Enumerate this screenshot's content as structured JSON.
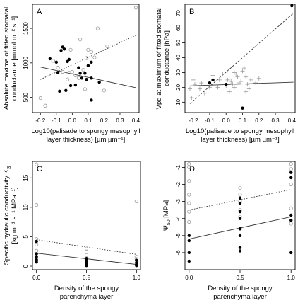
{
  "chart_data": [
    {
      "panel": "A",
      "type": "scatter",
      "xlabel_lines": [
        "Log10(palisade to spongy mesophyll",
        "layer thickness) [µm µm⁻¹]"
      ],
      "ylabel_lines": [
        "Absolute maxima of fitted stomatal",
        "conductance [mmol m⁻² s⁻¹]"
      ],
      "xlim": [
        -0.25,
        0.42
      ],
      "ylim": [
        280,
        1850
      ],
      "xticks": [
        -0.2,
        -0.1,
        0.0,
        0.1,
        0.2,
        0.3,
        0.4
      ],
      "xtick_labels": [
        "-0.2",
        "-0.1",
        "0.0",
        "0.1",
        "0.2",
        "0.3",
        "0.4"
      ],
      "yticks": [
        500,
        1000,
        1500
      ],
      "ytick_labels": [
        "500",
        "1000",
        "1500"
      ],
      "series": [
        {
          "marker": "filled",
          "points": [
            [
              -0.14,
              1060
            ],
            [
              -0.1,
              1010
            ],
            [
              -0.09,
              860
            ],
            [
              -0.08,
              590
            ],
            [
              -0.07,
              1180
            ],
            [
              -0.06,
              1230
            ],
            [
              -0.05,
              1200
            ],
            [
              -0.04,
              600
            ],
            [
              -0.03,
              1020
            ],
            [
              -0.02,
              1050
            ],
            [
              -0.01,
              670
            ],
            [
              0.02,
              680
            ],
            [
              0.04,
              930
            ],
            [
              0.05,
              850
            ],
            [
              0.06,
              780
            ],
            [
              0.08,
              850
            ],
            [
              0.09,
              760
            ],
            [
              0.1,
              960
            ],
            [
              0.12,
              1010
            ],
            [
              0.12,
              780
            ],
            [
              0.17,
              720
            ],
            [
              0.12,
              460
            ]
          ]
        },
        {
          "marker": "open",
          "points": [
            [
              -0.2,
              490
            ],
            [
              -0.17,
              380
            ],
            [
              -0.12,
              1030
            ],
            [
              -0.09,
              930
            ],
            [
              -0.06,
              870
            ],
            [
              -0.02,
              860
            ],
            [
              -0.01,
              1190
            ],
            [
              0.0,
              870
            ],
            [
              0.02,
              820
            ],
            [
              0.04,
              780
            ],
            [
              0.07,
              900
            ],
            [
              0.09,
              1070
            ],
            [
              0.1,
              1190
            ],
            [
              0.12,
              1160
            ],
            [
              0.14,
              1080
            ],
            [
              0.16,
              1500
            ],
            [
              0.22,
              1240
            ],
            [
              0.05,
              1340
            ],
            [
              0.2,
              600
            ],
            [
              -0.03,
              760
            ],
            [
              0.08,
              620
            ],
            [
              0.4,
              1800
            ]
          ]
        }
      ],
      "fits": [
        {
          "style": "dotted",
          "from": [
            -0.2,
            760
          ],
          "to": [
            0.41,
            1410
          ]
        },
        {
          "style": "solid",
          "from": [
            -0.2,
            940
          ],
          "to": [
            0.4,
            640
          ]
        }
      ]
    },
    {
      "panel": "B",
      "type": "scatter",
      "xlabel_lines": [
        "Log10(palisade to spongy mesophyll",
        "layer thickness) [µm µm⁻¹]"
      ],
      "ylabel_lines": [
        "Vpd at maximum of fitted stomatal",
        "conductance [hPa]"
      ],
      "xlim": [
        -0.25,
        0.42
      ],
      "ylim": [
        3,
        76
      ],
      "xticks": [
        -0.2,
        -0.1,
        0.0,
        0.1,
        0.2,
        0.3,
        0.4
      ],
      "xtick_labels": [
        "-0.2",
        "-0.1",
        "0.0",
        "0.1",
        "0.2",
        "0.3",
        "0.4"
      ],
      "yticks": [
        10,
        20,
        30,
        40,
        50,
        60,
        70
      ],
      "ytick_labels": [
        "10",
        "20",
        "30",
        "40",
        "50",
        "60",
        "70"
      ],
      "series": [
        {
          "marker": "cross",
          "points": [
            [
              -0.22,
              19
            ],
            [
              -0.21,
              13
            ],
            [
              -0.2,
              25
            ],
            [
              -0.19,
              22
            ],
            [
              -0.16,
              19
            ],
            [
              -0.15,
              23
            ],
            [
              -0.13,
              16
            ],
            [
              -0.1,
              20
            ],
            [
              -0.08,
              28
            ],
            [
              -0.05,
              20
            ],
            [
              -0.04,
              25
            ],
            [
              -0.02,
              29
            ],
            [
              0.0,
              21
            ],
            [
              0.01,
              25
            ],
            [
              0.02,
              17
            ],
            [
              0.03,
              24
            ],
            [
              0.04,
              22
            ],
            [
              0.05,
              20
            ],
            [
              0.06,
              29
            ],
            [
              0.07,
              27
            ],
            [
              0.08,
              23
            ],
            [
              0.09,
              24
            ],
            [
              0.1,
              31
            ],
            [
              0.11,
              33
            ],
            [
              0.12,
              27
            ],
            [
              0.13,
              22
            ],
            [
              0.14,
              19
            ],
            [
              0.15,
              25
            ],
            [
              0.18,
              23
            ],
            [
              0.05,
              30
            ],
            [
              0.2,
              26
            ],
            [
              0.12,
              17
            ]
          ]
        },
        {
          "marker": "filled",
          "points": [
            [
              -0.1,
              23
            ],
            [
              -0.08,
              25
            ],
            [
              0.0,
              22
            ],
            [
              0.1,
              6
            ],
            [
              0.4,
              75
            ]
          ]
        }
      ],
      "fits": [
        {
          "style": "dashed",
          "from": [
            -0.22,
            9
          ],
          "to": [
            0.41,
            70
          ]
        },
        {
          "style": "solid",
          "from": [
            -0.22,
            21
          ],
          "to": [
            0.41,
            23.5
          ]
        }
      ]
    },
    {
      "panel": "C",
      "type": "scatter",
      "xlabel_lines": [
        "Density of the spongy",
        "parenchyma layer"
      ],
      "ylabel_lines": [
        "Specific hydraulic conductivity K",
        "[kg m⁻¹ s⁻¹ MPa⁻¹]"
      ],
      "ylabel_subscript": "S",
      "xlim": [
        -0.04,
        1.04
      ],
      "ylim": [
        -0.6,
        17.8
      ],
      "xticks": [
        0.0,
        0.5,
        1.0
      ],
      "xtick_labels": [
        "0.0",
        "0.5",
        "1.0"
      ],
      "yticks": [
        0,
        5,
        10,
        15
      ],
      "ytick_labels": [
        "0",
        "5",
        "10",
        "15"
      ],
      "series": [
        {
          "marker": "open",
          "points": [
            [
              0,
              17.3
            ],
            [
              0,
              10.4
            ],
            [
              0,
              4.6
            ],
            [
              0,
              3.7
            ],
            [
              0,
              2.6
            ],
            [
              0.5,
              3.0
            ],
            [
              0.5,
              2.4
            ],
            [
              0.5,
              1.9
            ],
            [
              0.5,
              1.5
            ],
            [
              0.5,
              1.1
            ],
            [
              1,
              11.0
            ],
            [
              1,
              1.6
            ],
            [
              1,
              1.2
            ]
          ]
        },
        {
          "marker": "filled",
          "points": [
            [
              0,
              4.2
            ],
            [
              0,
              2.1
            ],
            [
              0,
              1.6
            ],
            [
              0,
              1.1
            ],
            [
              0,
              0.7
            ],
            [
              0.5,
              1.3
            ],
            [
              0.5,
              1.0
            ],
            [
              0.5,
              0.7
            ],
            [
              0.5,
              0.5
            ],
            [
              0.5,
              0.3
            ],
            [
              0.5,
              0.1
            ],
            [
              1,
              1.0
            ],
            [
              1,
              0.6
            ],
            [
              1,
              0.3
            ],
            [
              1,
              0.1
            ]
          ]
        }
      ],
      "fits": [
        {
          "style": "dotted",
          "from": [
            0,
            4.5
          ],
          "to": [
            1,
            2.0
          ]
        },
        {
          "style": "solid",
          "from": [
            0,
            2.2
          ],
          "to": [
            1,
            0.3
          ]
        }
      ]
    },
    {
      "panel": "D",
      "type": "scatter",
      "xlabel_lines": [
        "Density of the spongy",
        "parenchyma layer"
      ],
      "ylabel_main": "Ψ",
      "ylabel_subscript": "50",
      "ylabel_unit": "[MPa]",
      "xlim": [
        -0.04,
        1.04
      ],
      "ylim": [
        -7.0,
        -0.65
      ],
      "xticks": [
        0.0,
        0.5,
        1.0
      ],
      "xtick_labels": [
        "0.0",
        "0.5",
        "1.0"
      ],
      "yticks": [
        -6,
        -5,
        -4,
        -3,
        -2,
        -1
      ],
      "ytick_labels": [
        "-6",
        "-5",
        "-4",
        "-3",
        "-2",
        "-1"
      ],
      "series": [
        {
          "marker": "open",
          "points": [
            [
              0,
              -0.8
            ],
            [
              0,
              -1.0
            ],
            [
              0,
              -1.8
            ],
            [
              0,
              -2.6
            ],
            [
              0,
              -3.1
            ],
            [
              0,
              -3.6
            ],
            [
              0,
              -4.2
            ],
            [
              0.5,
              -2.2
            ],
            [
              0.5,
              -2.6
            ],
            [
              0.5,
              -3.0
            ],
            [
              0.5,
              -3.5
            ],
            [
              0.5,
              -3.9
            ],
            [
              0.5,
              -4.6
            ],
            [
              1,
              -0.8
            ],
            [
              1,
              -1.1
            ],
            [
              1,
              -2.0
            ],
            [
              1,
              -3.4
            ],
            [
              1,
              -4.3
            ]
          ]
        },
        {
          "marker": "filled",
          "points": [
            [
              0,
              -5.0
            ],
            [
              0,
              -5.3
            ],
            [
              0,
              -6.0
            ],
            [
              0,
              -6.5
            ],
            [
              0.5,
              -2.8
            ],
            [
              0.5,
              -3.1
            ],
            [
              0.5,
              -3.6
            ],
            [
              0.5,
              -4.0
            ],
            [
              0.5,
              -4.6
            ],
            [
              0.5,
              -5.0
            ],
            [
              0.5,
              -5.7
            ],
            [
              0.5,
              -5.9
            ],
            [
              1,
              -1.3
            ],
            [
              1,
              -1.6
            ],
            [
              1,
              -3.8
            ],
            [
              1,
              -4.1
            ],
            [
              1,
              -6.0
            ]
          ]
        }
      ],
      "fits": [
        {
          "style": "dotted",
          "from": [
            0,
            -3.5
          ],
          "to": [
            1,
            -2.3
          ]
        },
        {
          "style": "solid",
          "from": [
            0,
            -5.2
          ],
          "to": [
            1,
            -3.9
          ]
        }
      ]
    }
  ]
}
